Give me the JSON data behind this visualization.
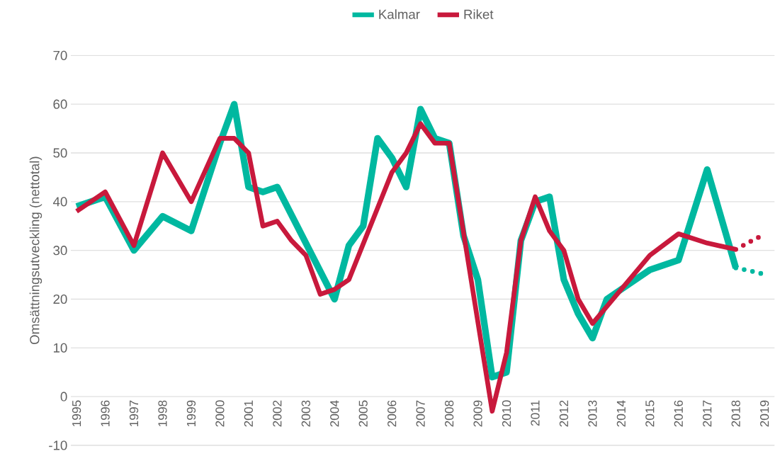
{
  "chart_data": {
    "type": "line",
    "ylabel": "Omsättningsutveckling (nettotal)",
    "xlim": [
      1994.8,
      2019.35
    ],
    "ylim": [
      -10,
      70
    ],
    "xticks": [
      1995,
      1996,
      1997,
      1998,
      1999,
      2000,
      2001,
      2002,
      2003,
      2004,
      2005,
      2006,
      2007,
      2008,
      2009,
      2010,
      2011,
      2012,
      2013,
      2014,
      2015,
      2016,
      2017,
      2018,
      2019
    ],
    "yticks": [
      -10,
      0,
      10,
      20,
      30,
      40,
      50,
      60,
      70
    ],
    "grid": "y",
    "legend": "top",
    "marker": "none",
    "series": [
      {
        "name": "Kalmar",
        "color": "#00b8a0",
        "line_style": "solid",
        "x": [
          1995,
          1996,
          1997,
          1998,
          1999,
          2000,
          2000.5,
          2001,
          2001.5,
          2002,
          2004,
          2004.5,
          2005,
          2005.5,
          2006,
          2006.5,
          2007,
          2007.5,
          2008,
          2008.5,
          2009,
          2009.5,
          2010,
          2010.5,
          2011,
          2011.5,
          2012,
          2012.5,
          2013,
          2013.5,
          2015,
          2016,
          2017,
          2018
        ],
        "values": [
          39,
          41,
          30,
          37,
          34,
          52,
          60,
          43,
          42,
          43,
          20,
          31,
          35,
          53,
          49,
          43,
          59,
          53,
          52,
          33,
          24,
          4,
          5,
          32,
          40,
          41,
          24,
          17,
          12,
          20,
          26,
          28,
          46.6,
          26.4
        ]
      },
      {
        "name": "Riket",
        "color": "#c8193c",
        "line_style": "solid",
        "x": [
          1995,
          1996,
          1997,
          1998,
          1999,
          2000,
          2000.5,
          2001,
          2001.5,
          2002,
          2002.5,
          2003,
          2003.5,
          2004,
          2004.5,
          2006,
          2006.5,
          2007,
          2007.5,
          2008,
          2009.5,
          2010,
          2010.5,
          2011,
          2011.5,
          2012,
          2012.5,
          2013,
          2015,
          2016,
          2017,
          2018
        ],
        "values": [
          38,
          42,
          31,
          50,
          40,
          53,
          53,
          50,
          35,
          36,
          32,
          29,
          21,
          22,
          24,
          46,
          50,
          56,
          52,
          52,
          -3,
          9,
          32,
          41,
          34,
          30,
          20,
          15,
          29,
          33.4,
          31.5,
          30.2
        ]
      },
      {
        "color": "#00b8a0",
        "line_style": "dotted",
        "x": [
          2018,
          2018.5,
          2019
        ],
        "values": [
          26.4,
          25.8,
          25.1
        ]
      },
      {
        "color": "#c8193c",
        "line_style": "dotted",
        "x": [
          2018,
          2018.5,
          2019
        ],
        "values": [
          30.2,
          31.8,
          33.3
        ]
      }
    ]
  }
}
